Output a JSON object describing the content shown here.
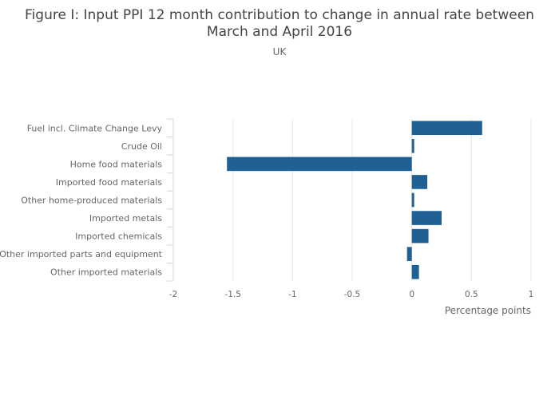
{
  "chart_data": {
    "type": "bar",
    "orientation": "horizontal",
    "title": "Figure I: Input PPI 12 month contribution to change in annual rate between March and April 2016",
    "title_lines": [
      "Figure I: Input PPI 12 month contribution to change in annual rate between",
      "March and April 2016"
    ],
    "subtitle": "UK",
    "xlabel": "Percentage points",
    "ylabel": "",
    "xlim": [
      -2,
      1
    ],
    "x_ticks": [
      -2,
      -1.5,
      -1,
      -0.5,
      0,
      0.5,
      1
    ],
    "x_tick_labels": [
      "-2",
      "-1.5",
      "-1",
      "-0.5",
      "0",
      "0.5",
      "1"
    ],
    "grid": true,
    "legend": "none",
    "categories": [
      "Fuel incl. Climate Change Levy",
      "Crude Oil",
      "Home food materials",
      "Imported food materials",
      "Other home-produced materials",
      "Imported metals",
      "Imported chemicals",
      "Other imported parts and equipment",
      "Other imported materials"
    ],
    "values": [
      0.59,
      0.02,
      -1.55,
      0.13,
      0.02,
      0.25,
      0.14,
      -0.04,
      0.06
    ],
    "colors": {
      "bar": "#206095",
      "grid": "#e6e6e6",
      "text": "#666666",
      "title": "#444444"
    }
  }
}
